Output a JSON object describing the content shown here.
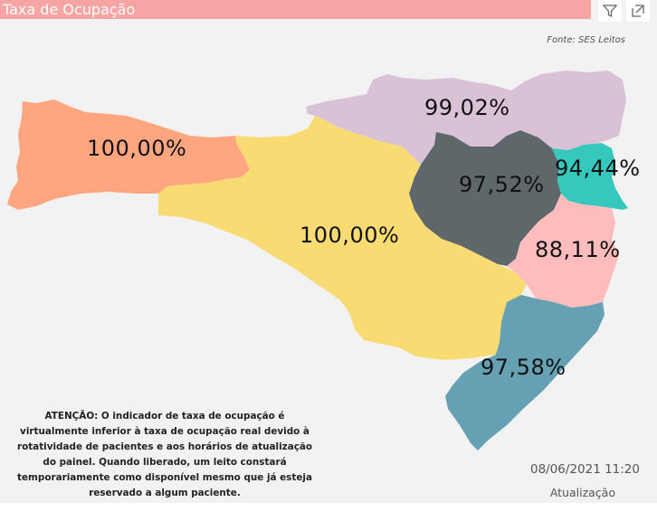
{
  "header": {
    "title": "Taxa de Ocupação"
  },
  "toolbar": {
    "filter_icon": "filter-icon",
    "focus_icon": "focus-mode-icon"
  },
  "source": "Fonte: SES Leitos",
  "regions": [
    {
      "label": "100,00%",
      "color": "#ffa681"
    },
    {
      "label": "100,00%",
      "color": "#f8dc73"
    },
    {
      "label": "99,02%",
      "color": "#d9c1d6"
    },
    {
      "label": "97,52%",
      "color": "#5e6769"
    },
    {
      "label": "94,44%",
      "color": "#35c9bd"
    },
    {
      "label": "88,11%",
      "color": "#ffbcbc"
    },
    {
      "label": "97,58%",
      "color": "#65a1b3"
    }
  ],
  "warning": "ATENÇÃO: O indicador de taxa de ocupação é virtualmente inferior à taxa de ocupação real devido à rotatividade de pacientes e aos horários de atualização do painel.  Quando liberado, um leito constará temporariamente como disponível mesmo que já esteja reservado a algum paciente.",
  "update": {
    "datetime": "08/06/2021 11:20",
    "label": "Atualização"
  },
  "colors": {
    "header": "#f7a4a4",
    "background": "#f2f2f2"
  }
}
